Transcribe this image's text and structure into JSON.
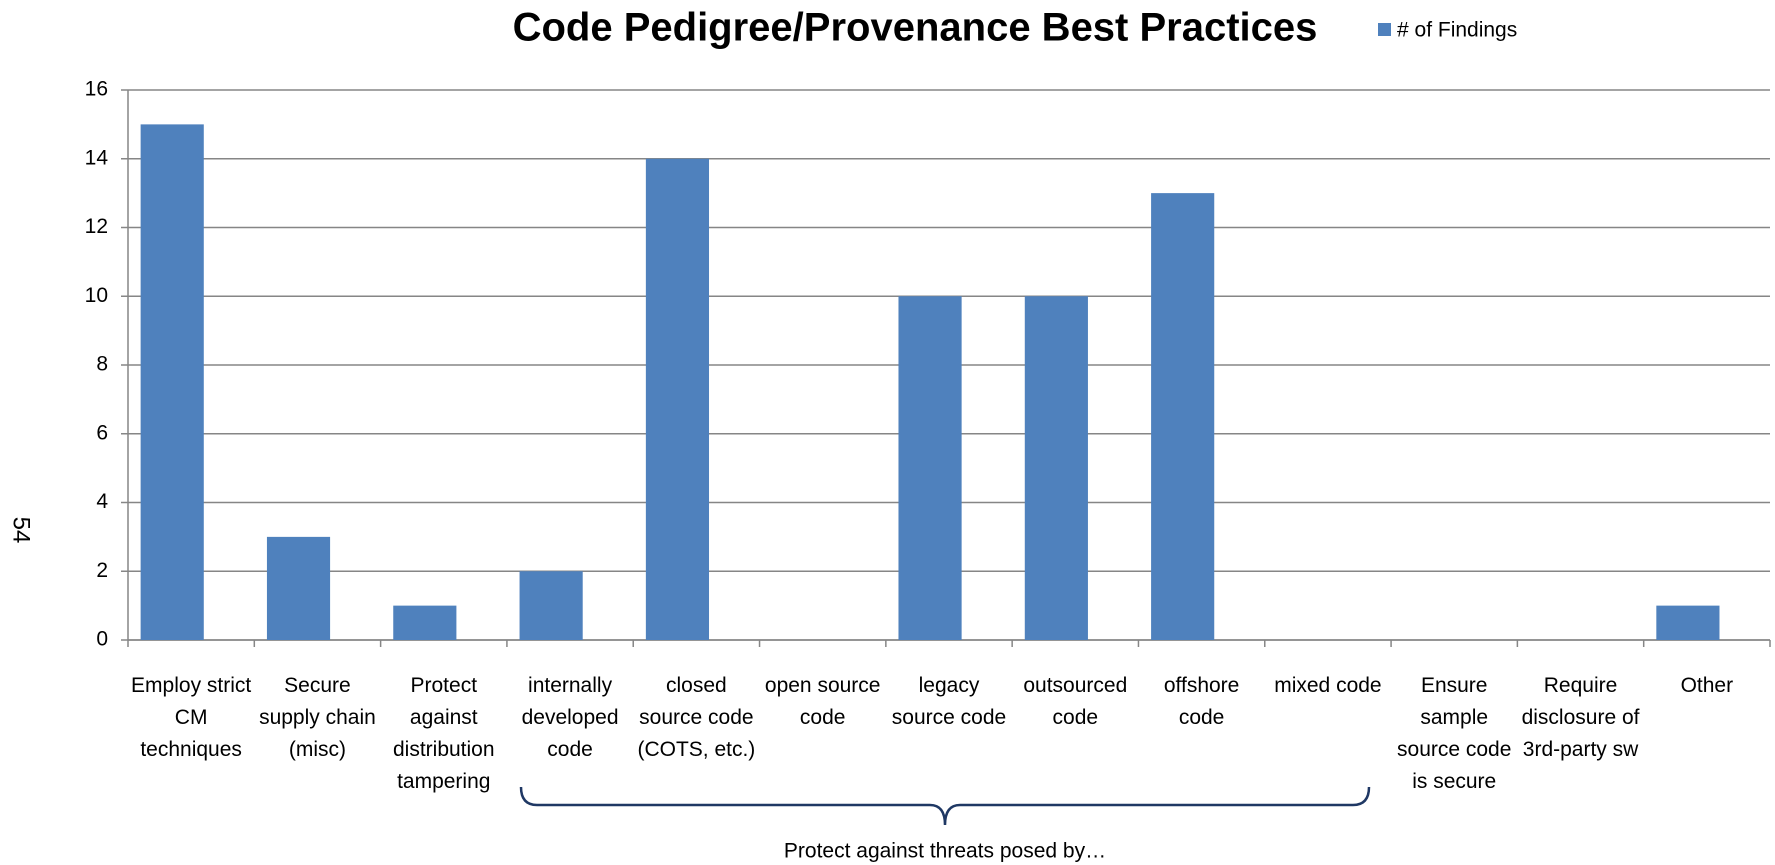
{
  "chart_data": {
    "type": "bar",
    "title": "Code Pedigree/Provenance Best Practices",
    "categories": [
      "Employ strict CM techniques",
      "Secure supply chain (misc)",
      "Protect against distribution tampering",
      "internally developed code",
      "closed source code (COTS, etc.)",
      "open source code",
      "legacy source code",
      "outsourced code",
      "offshore code",
      "mixed code",
      "Ensure sample source code is secure",
      "Require disclosure of 3rd-party sw",
      "Other"
    ],
    "series": [
      {
        "name": "# of Findings",
        "color": "#4f81bd",
        "values": [
          15,
          3,
          1,
          2,
          14,
          0,
          10,
          10,
          13,
          0,
          0,
          0,
          1
        ]
      }
    ],
    "ylim": [
      0,
      16
    ],
    "yticks": [
      0,
      2,
      4,
      6,
      8,
      10,
      12,
      14,
      16
    ],
    "grid": true,
    "legend": "top-right",
    "annotation": "Protect against threats posed by…",
    "page_number": "54"
  }
}
